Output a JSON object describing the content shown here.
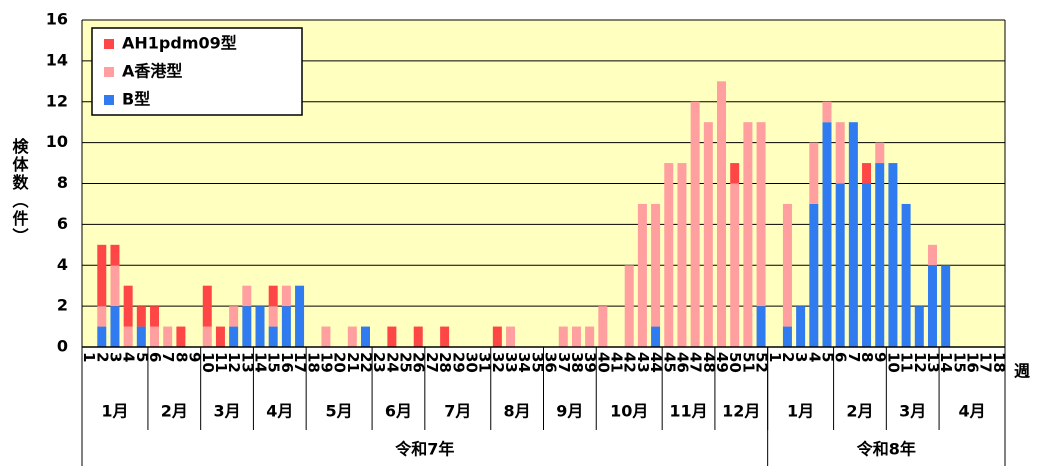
{
  "chart_data": {
    "type": "bar",
    "stacked": true,
    "y_label": "検体数（件）",
    "x_unit_label": "週",
    "categories": [
      "1",
      "2",
      "3",
      "4",
      "5",
      "6",
      "7",
      "8",
      "9",
      "10",
      "11",
      "12",
      "13",
      "14",
      "15",
      "16",
      "17",
      "18",
      "19",
      "20",
      "21",
      "22",
      "23",
      "24",
      "25",
      "26",
      "27",
      "28",
      "29",
      "30",
      "31",
      "32",
      "33",
      "34",
      "35",
      "36",
      "37",
      "38",
      "39",
      "40",
      "41",
      "42",
      "43",
      "44",
      "45",
      "46",
      "47",
      "48",
      "49",
      "50",
      "51",
      "52",
      "1",
      "2",
      "3",
      "4",
      "5",
      "6",
      "7",
      "8",
      "9",
      "10",
      "11",
      "12",
      "13",
      "14",
      "15",
      "16",
      "17",
      "18"
    ],
    "months": [
      "1月",
      "2月",
      "3月",
      "4月",
      "5月",
      "6月",
      "7月",
      "8月",
      "9月",
      "10月",
      "11月",
      "12月",
      "1月",
      "2月",
      "3月",
      "4月"
    ],
    "years": [
      "令和7年",
      "令和8年"
    ],
    "series": [
      {
        "name": "B型",
        "color": "#2f7bef",
        "values": [
          0,
          1,
          2,
          0,
          1,
          0,
          0,
          0,
          0,
          0,
          0,
          1,
          2,
          2,
          1,
          2,
          3,
          0,
          0,
          0,
          0,
          1,
          0,
          0,
          0,
          0,
          0,
          0,
          0,
          0,
          0,
          0,
          0,
          0,
          0,
          0,
          0,
          0,
          0,
          0,
          0,
          0,
          0,
          1,
          0,
          0,
          0,
          0,
          0,
          0,
          0,
          2,
          0,
          1,
          2,
          7,
          11,
          8,
          11,
          8,
          9,
          9,
          7,
          2,
          4,
          4,
          0,
          0,
          0,
          0
        ]
      },
      {
        "name": "A香港型",
        "color": "#ff9f9f",
        "values": [
          0,
          1,
          2,
          1,
          0,
          1,
          1,
          0,
          0,
          1,
          0,
          1,
          1,
          0,
          1,
          1,
          0,
          0,
          1,
          0,
          1,
          0,
          0,
          0,
          0,
          0,
          0,
          0,
          0,
          0,
          0,
          0,
          1,
          0,
          0,
          0,
          1,
          1,
          1,
          2,
          0,
          4,
          7,
          6,
          9,
          9,
          12,
          11,
          13,
          8,
          11,
          9,
          0,
          6,
          0,
          3,
          1,
          3,
          0,
          0,
          1,
          0,
          0,
          0,
          1,
          0,
          0,
          0,
          0,
          0
        ]
      },
      {
        "name": "AH1pdm09型",
        "color": "#ff4646",
        "values": [
          0,
          3,
          1,
          2,
          1,
          1,
          0,
          1,
          0,
          2,
          1,
          0,
          0,
          0,
          1,
          0,
          0,
          0,
          0,
          0,
          0,
          0,
          0,
          1,
          0,
          1,
          0,
          1,
          0,
          0,
          0,
          1,
          0,
          0,
          0,
          0,
          0,
          0,
          0,
          0,
          0,
          0,
          0,
          0,
          0,
          0,
          0,
          0,
          0,
          1,
          0,
          0,
          0,
          0,
          0,
          0,
          0,
          0,
          0,
          1,
          0,
          0,
          0,
          0,
          0,
          0,
          0,
          0,
          0,
          0
        ]
      }
    ],
    "ylim": [
      0,
      16
    ],
    "yticks": [
      0,
      2,
      4,
      6,
      8,
      10,
      12,
      14,
      16
    ],
    "grid": true,
    "legend": "upper-left",
    "background": "#ffffc0"
  }
}
